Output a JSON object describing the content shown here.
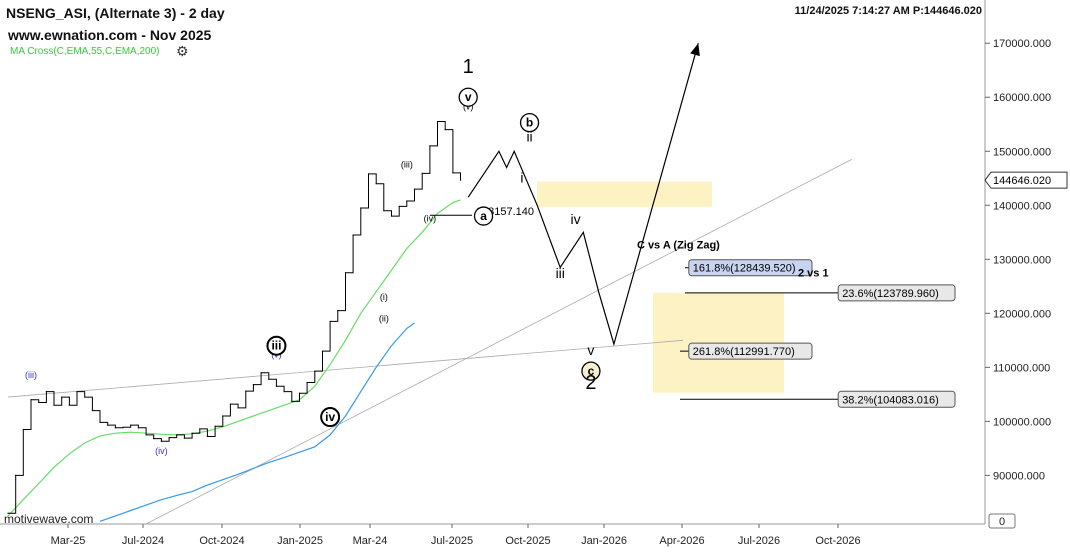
{
  "header": {
    "symbol_title": "NSENG_ASI, (Alternate 3) - 2 day",
    "site": "www.ewnation.com  - Nov 2025",
    "indicator": "MA Cross(C,EMA,55,C,EMA,200)",
    "timestamp": "11/24/2025 7:14:27 AM  P:144646.020",
    "watermark": "motivewave.com"
  },
  "icons": {
    "settings": "gear-icon"
  },
  "colors": {
    "price": "#000000",
    "ema55": "#66dd66",
    "ema200": "#3399ee",
    "trendline": "#aaaaaa",
    "target_zone": "#fdf2c4",
    "label_box": "#e8e8e8",
    "label_box_blue": "#c8d4f0",
    "wave_minor": "#3333cc"
  },
  "chart_data": {
    "type": "line",
    "title": "NSENG_ASI, (Alternate 3) - 2 day",
    "x_ticks": [
      "Mar-25",
      "Jul-2024",
      "Oct-2024",
      "Jan-2025",
      "Mar-24",
      "Jul-2025",
      "Oct-2025",
      "Jan-2026",
      "Apr-2026",
      "Jul-2026",
      "Oct-2026"
    ],
    "y_ticks": [
      90000,
      100000,
      110000,
      120000,
      130000,
      140000,
      150000,
      160000,
      170000
    ],
    "y_tick_labels": [
      "90000.000",
      "100000.000",
      "110000.000",
      "120000.000",
      "130000.000",
      "140000.000",
      "150000.000",
      "160000.000",
      "170000.000"
    ],
    "ylim": [
      81000,
      178000
    ],
    "y_axis_bottom_label": "0",
    "current_price": 144646.02,
    "current_price_label": "144646.020",
    "series": [
      {
        "name": "Price",
        "points": [
          [
            0,
            83000
          ],
          [
            1,
            90000
          ],
          [
            2,
            98500
          ],
          [
            3,
            104000
          ],
          [
            4,
            103500
          ],
          [
            5,
            105500
          ],
          [
            6,
            103000
          ],
          [
            7,
            104500
          ],
          [
            8,
            103000
          ],
          [
            9,
            105500
          ],
          [
            10,
            104500
          ],
          [
            11,
            102000
          ],
          [
            12,
            99800
          ],
          [
            13,
            99300
          ],
          [
            14,
            98800
          ],
          [
            15,
            98900
          ],
          [
            16,
            99300
          ],
          [
            17,
            98800
          ],
          [
            18,
            97500
          ],
          [
            19,
            96800
          ],
          [
            20,
            96300
          ],
          [
            21,
            97000
          ],
          [
            22,
            97500
          ],
          [
            23,
            96900
          ],
          [
            24,
            97800
          ],
          [
            25,
            98600
          ],
          [
            26,
            97200
          ],
          [
            27,
            99100
          ],
          [
            28,
            101000
          ],
          [
            29,
            103200
          ],
          [
            30,
            102500
          ],
          [
            31,
            105600
          ],
          [
            32,
            106800
          ],
          [
            33,
            109000
          ],
          [
            34,
            107800
          ],
          [
            35,
            106500
          ],
          [
            36,
            105500
          ],
          [
            37,
            103700
          ],
          [
            38,
            105200
          ],
          [
            39,
            107200
          ],
          [
            40,
            109300
          ],
          [
            41,
            113000
          ],
          [
            42,
            118500
          ],
          [
            43,
            120500
          ],
          [
            44,
            127500
          ],
          [
            45,
            134500
          ],
          [
            46,
            139500
          ],
          [
            47,
            145800
          ],
          [
            48,
            144000
          ],
          [
            49,
            139000
          ],
          [
            50,
            138000
          ],
          [
            51,
            139800
          ],
          [
            52,
            140800
          ],
          [
            53,
            143000
          ],
          [
            54,
            145900
          ],
          [
            55,
            151000
          ],
          [
            56,
            155500
          ],
          [
            57,
            154000
          ],
          [
            58,
            146000
          ],
          [
            59,
            144646
          ]
        ]
      },
      {
        "name": "EMA 55",
        "points": [
          [
            0,
            82500
          ],
          [
            2,
            85500
          ],
          [
            4,
            88500
          ],
          [
            6,
            91500
          ],
          [
            8,
            94000
          ],
          [
            10,
            96000
          ],
          [
            12,
            97300
          ],
          [
            14,
            97800
          ],
          [
            16,
            98000
          ],
          [
            18,
            97800
          ],
          [
            20,
            97600
          ],
          [
            22,
            97500
          ],
          [
            24,
            97700
          ],
          [
            26,
            98200
          ],
          [
            28,
            99000
          ],
          [
            30,
            100000
          ],
          [
            32,
            101000
          ],
          [
            34,
            102000
          ],
          [
            36,
            103000
          ],
          [
            38,
            104000
          ],
          [
            40,
            106500
          ],
          [
            42,
            110500
          ],
          [
            44,
            115000
          ],
          [
            46,
            120000
          ],
          [
            48,
            124000
          ],
          [
            50,
            128000
          ],
          [
            52,
            132000
          ],
          [
            54,
            135000
          ],
          [
            56,
            138500
          ],
          [
            58,
            140500
          ],
          [
            59,
            141000
          ]
        ]
      },
      {
        "name": "EMA 200",
        "points": [
          [
            12,
            81500
          ],
          [
            14,
            82500
          ],
          [
            16,
            83500
          ],
          [
            18,
            84500
          ],
          [
            20,
            85500
          ],
          [
            22,
            86300
          ],
          [
            24,
            87000
          ],
          [
            26,
            88200
          ],
          [
            28,
            89200
          ],
          [
            30,
            90200
          ],
          [
            32,
            91300
          ],
          [
            34,
            92400
          ],
          [
            36,
            93300
          ],
          [
            38,
            94300
          ],
          [
            40,
            95300
          ],
          [
            42,
            97500
          ],
          [
            44,
            101000
          ],
          [
            46,
            105500
          ],
          [
            48,
            110000
          ],
          [
            50,
            114000
          ],
          [
            52,
            117200
          ],
          [
            53,
            118200
          ]
        ]
      },
      {
        "name": "Projection",
        "points": [
          [
            60,
            141500
          ],
          [
            64,
            150000
          ],
          [
            65,
            147000
          ],
          [
            66,
            150000
          ],
          [
            69,
            140000
          ],
          [
            72,
            128500
          ],
          [
            75,
            135000
          ],
          [
            77,
            124000
          ],
          [
            79,
            114300
          ],
          [
            90,
            170000
          ]
        ]
      }
    ],
    "trendlines": [
      {
        "from": [
          0,
          104500
        ],
        "to": [
          88,
          115000
        ]
      },
      {
        "from": [
          18,
          81000
        ],
        "to": [
          110,
          148500
        ]
      }
    ],
    "wave_labels": [
      {
        "text": "(iii)",
        "x": 3,
        "y": 108000,
        "color": "wave_minor"
      },
      {
        "text": "(iv)",
        "x": 20,
        "y": 94000,
        "color": "wave_minor"
      },
      {
        "text": "(v)",
        "x": 35,
        "y": 111800,
        "color": "wave_minor"
      },
      {
        "text": "iii",
        "x": 35,
        "y": 114000,
        "style": "circle"
      },
      {
        "text": "iv",
        "x": 42,
        "y": 100800,
        "style": "circle"
      },
      {
        "text": "(i)",
        "x": 49,
        "y": 122500
      },
      {
        "text": "(ii)",
        "x": 49,
        "y": 118500
      },
      {
        "text": "(iii)",
        "x": 52,
        "y": 147000
      },
      {
        "text": "(iv)",
        "x": 55,
        "y": 137000
      },
      {
        "text": "(v)",
        "x": 60,
        "y": 157700
      },
      {
        "text": "v",
        "x": 60,
        "y": 160000,
        "style": "circle"
      },
      {
        "text": "1",
        "x": 60,
        "y": 164500,
        "style": "large"
      },
      {
        "text": "a",
        "x": 62,
        "y": 138000,
        "style": "circle"
      },
      {
        "text": "b",
        "x": 68,
        "y": 155300,
        "style": "circle"
      },
      {
        "text": "ii",
        "x": 68,
        "y": 151800,
        "style": "roman"
      },
      {
        "text": "i",
        "x": 67,
        "y": 144200,
        "style": "roman"
      },
      {
        "text": "iii",
        "x": 72,
        "y": 126500,
        "style": "roman"
      },
      {
        "text": "iv",
        "x": 74,
        "y": 136500,
        "style": "roman"
      },
      {
        "text": "v",
        "x": 76,
        "y": 112300,
        "style": "roman"
      },
      {
        "text": "c",
        "x": 76,
        "y": 109300,
        "style": "circle-tan"
      },
      {
        "text": "2",
        "x": 76,
        "y": 106000,
        "style": "large"
      }
    ],
    "annotations": [
      {
        "text": "138157.140",
        "x": 61,
        "y": 138157
      },
      {
        "text": "C vs A (Zig Zag)",
        "x": 82,
        "y": 132000
      },
      {
        "text": "2 vs 1",
        "x": 103,
        "y": 126800
      },
      {
        "text": "161.8%(128439.520)",
        "level": 128439.52,
        "box": "blue"
      },
      {
        "text": "23.6%(123789.960)",
        "level": 123789.96,
        "box": "gray"
      },
      {
        "text": "261.8%(112991.770)",
        "level": 112991.77,
        "box": "gray"
      },
      {
        "text": "38.2%(104083.016)",
        "level": 104083.016,
        "box": "gray"
      }
    ],
    "target_zones": [
      {
        "y_range": [
          139700,
          144400
        ]
      },
      {
        "y_range": [
          105300,
          123800
        ]
      }
    ],
    "grid": false,
    "legend": "top-left"
  }
}
